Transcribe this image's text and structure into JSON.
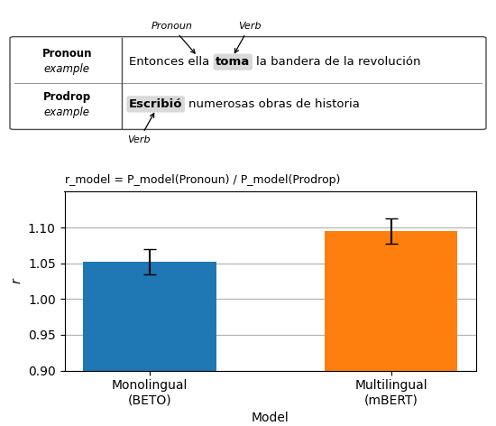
{
  "chart_data": {
    "type": "bar",
    "categories": [
      "Monolingual\n(BETO)",
      "Multilingual\n(mBERT)"
    ],
    "values": [
      1.052,
      1.095
    ],
    "error_lower": [
      0.018,
      0.018
    ],
    "error_upper": [
      0.018,
      0.018
    ],
    "ylim": [
      0.9,
      1.15
    ],
    "yticks": [
      {
        "value": 0.9,
        "label": "0.90"
      },
      {
        "value": 0.95,
        "label": "0.95"
      },
      {
        "value": 1.0,
        "label": "1.00"
      },
      {
        "value": 1.05,
        "label": "1.05"
      },
      {
        "value": 1.1,
        "label": "1.10"
      }
    ],
    "xlabel": "Model",
    "ylabel": "r",
    "grid": true,
    "annotations": [
      "Pronoun",
      "example",
      "Prodrop",
      "example",
      "Entonces ella",
      "toma",
      "la bandera de la revolución",
      "Escribió",
      "numerosas obras de historia",
      "Pronoun",
      "Verb",
      "Verb",
      "r_model = P_model(Pronoun) / P_model(Prodrop)"
    ]
  }
}
